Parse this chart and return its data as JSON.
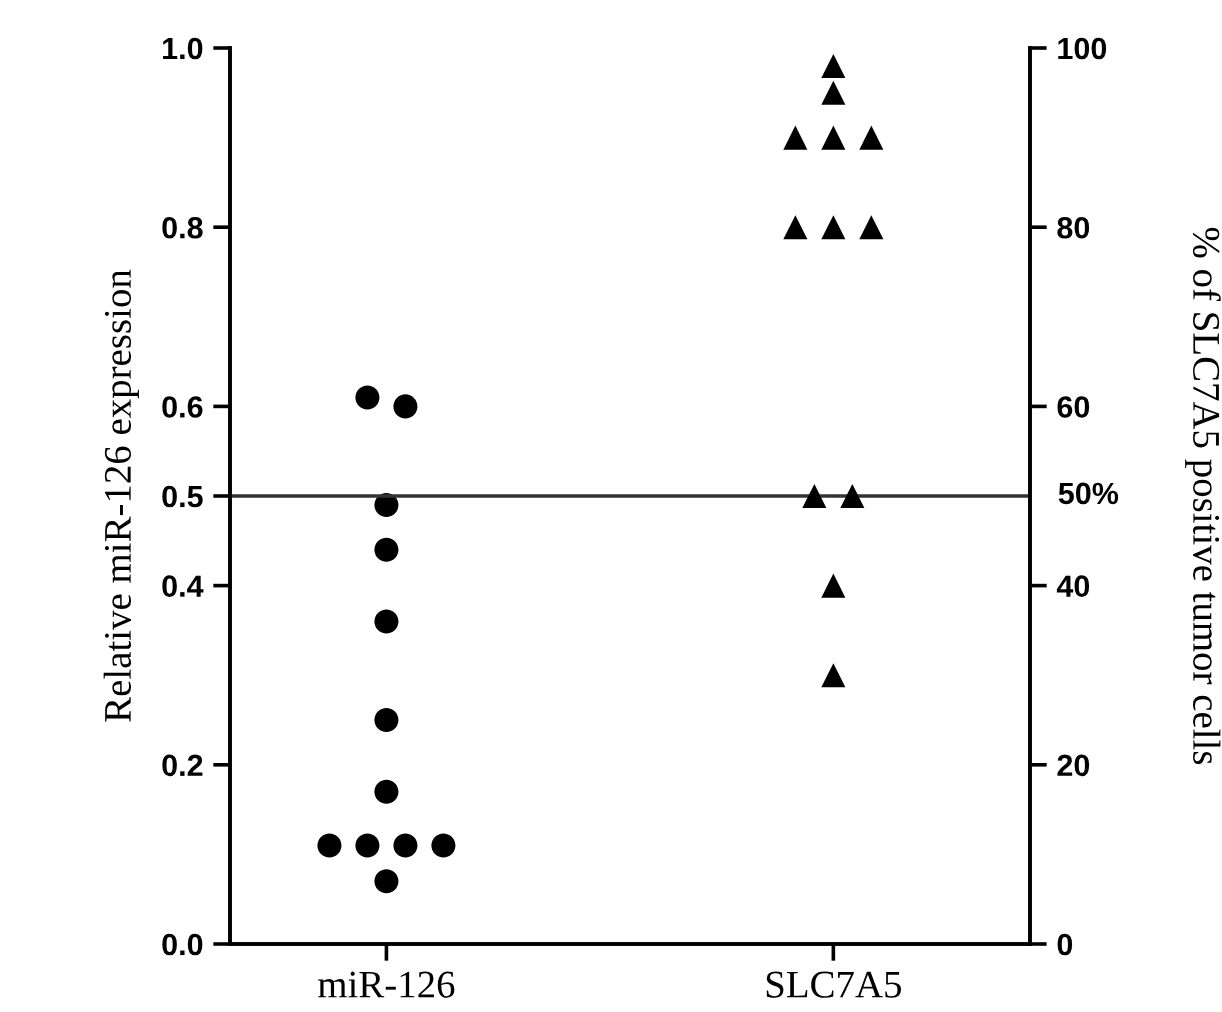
{
  "chart_data": {
    "type": "scatter",
    "categories": [
      "miR-126",
      "SLC7A5"
    ],
    "ylabel": "Relative miR-126 expression",
    "y2label": "% of SLC7A5 positive tumor cells",
    "ylim": [
      0,
      1.0
    ],
    "yticks": [
      {
        "value": 0,
        "label": "0.0"
      },
      0.2,
      0.4,
      0.5,
      0.6,
      0.8,
      {
        "value": 1,
        "label": "1.0"
      }
    ],
    "y2lim": [
      0,
      100
    ],
    "y2ticks": [
      0,
      20,
      40,
      60,
      80,
      100
    ],
    "series": [
      {
        "color": "#000000",
        "marker": "circle",
        "x": [
          "miR-126",
          "miR-126",
          "miR-126",
          "miR-126",
          "miR-126",
          "miR-126",
          "miR-126",
          "miR-126",
          "miR-126",
          "miR-126",
          "miR-126",
          "miR-126"
        ],
        "values": [
          0.61,
          0.6,
          0.49,
          0.44,
          0.36,
          0.25,
          0.17,
          0.11,
          0.11,
          0.11,
          0.11,
          0.07
        ]
      },
      {
        "color": "#000000",
        "marker": "triangle",
        "axis": "y2",
        "x": [
          "SLC7A5",
          "SLC7A5",
          "SLC7A5",
          "SLC7A5",
          "SLC7A5",
          "SLC7A5",
          "SLC7A5",
          "SLC7A5",
          "SLC7A5",
          "SLC7A5",
          "SLC7A5",
          "SLC7A5"
        ],
        "values": [
          98,
          95,
          90,
          90,
          90,
          80,
          80,
          80,
          50,
          50,
          40,
          30
        ]
      }
    ],
    "ref_lines": [
      {
        "axis": "y2",
        "value": 50,
        "label": "50%",
        "color": "#333333",
        "line_style": "solid"
      }
    ],
    "grid": false
  }
}
